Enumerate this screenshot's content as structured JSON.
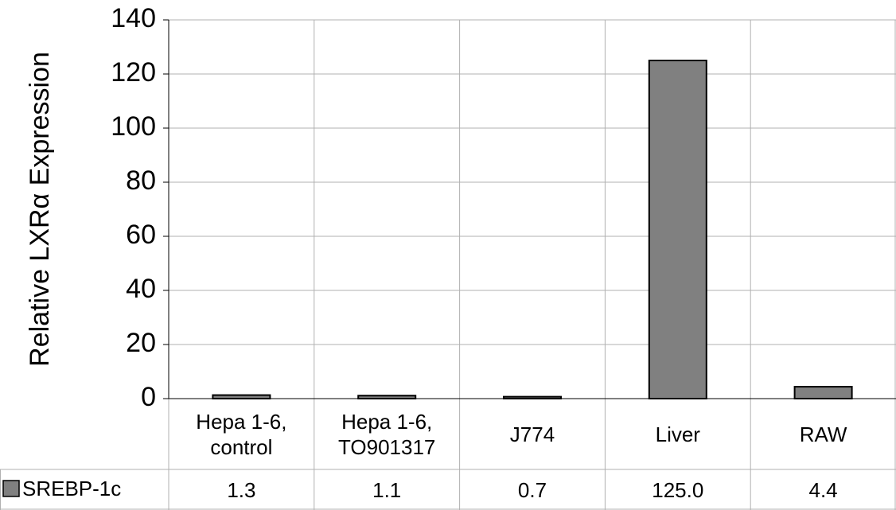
{
  "chart_data": {
    "type": "bar",
    "ylabel": "Relative LXRα Expression",
    "categories": [
      "Hepa 1-6, control",
      "Hepa 1-6, TO901317",
      "J774",
      "Liver",
      "RAW"
    ],
    "series": [
      {
        "name": "SREBP-1c",
        "color": "#808080",
        "values": [
          1.3,
          1.1,
          0.7,
          125.0,
          4.4
        ],
        "value_labels": [
          "1.3",
          "1.1",
          "0.7",
          "125.0",
          "4.4"
        ]
      }
    ],
    "ylim": [
      0,
      140
    ],
    "yticks": [
      0,
      20,
      40,
      60,
      80,
      100,
      120,
      140
    ],
    "grid": true
  }
}
